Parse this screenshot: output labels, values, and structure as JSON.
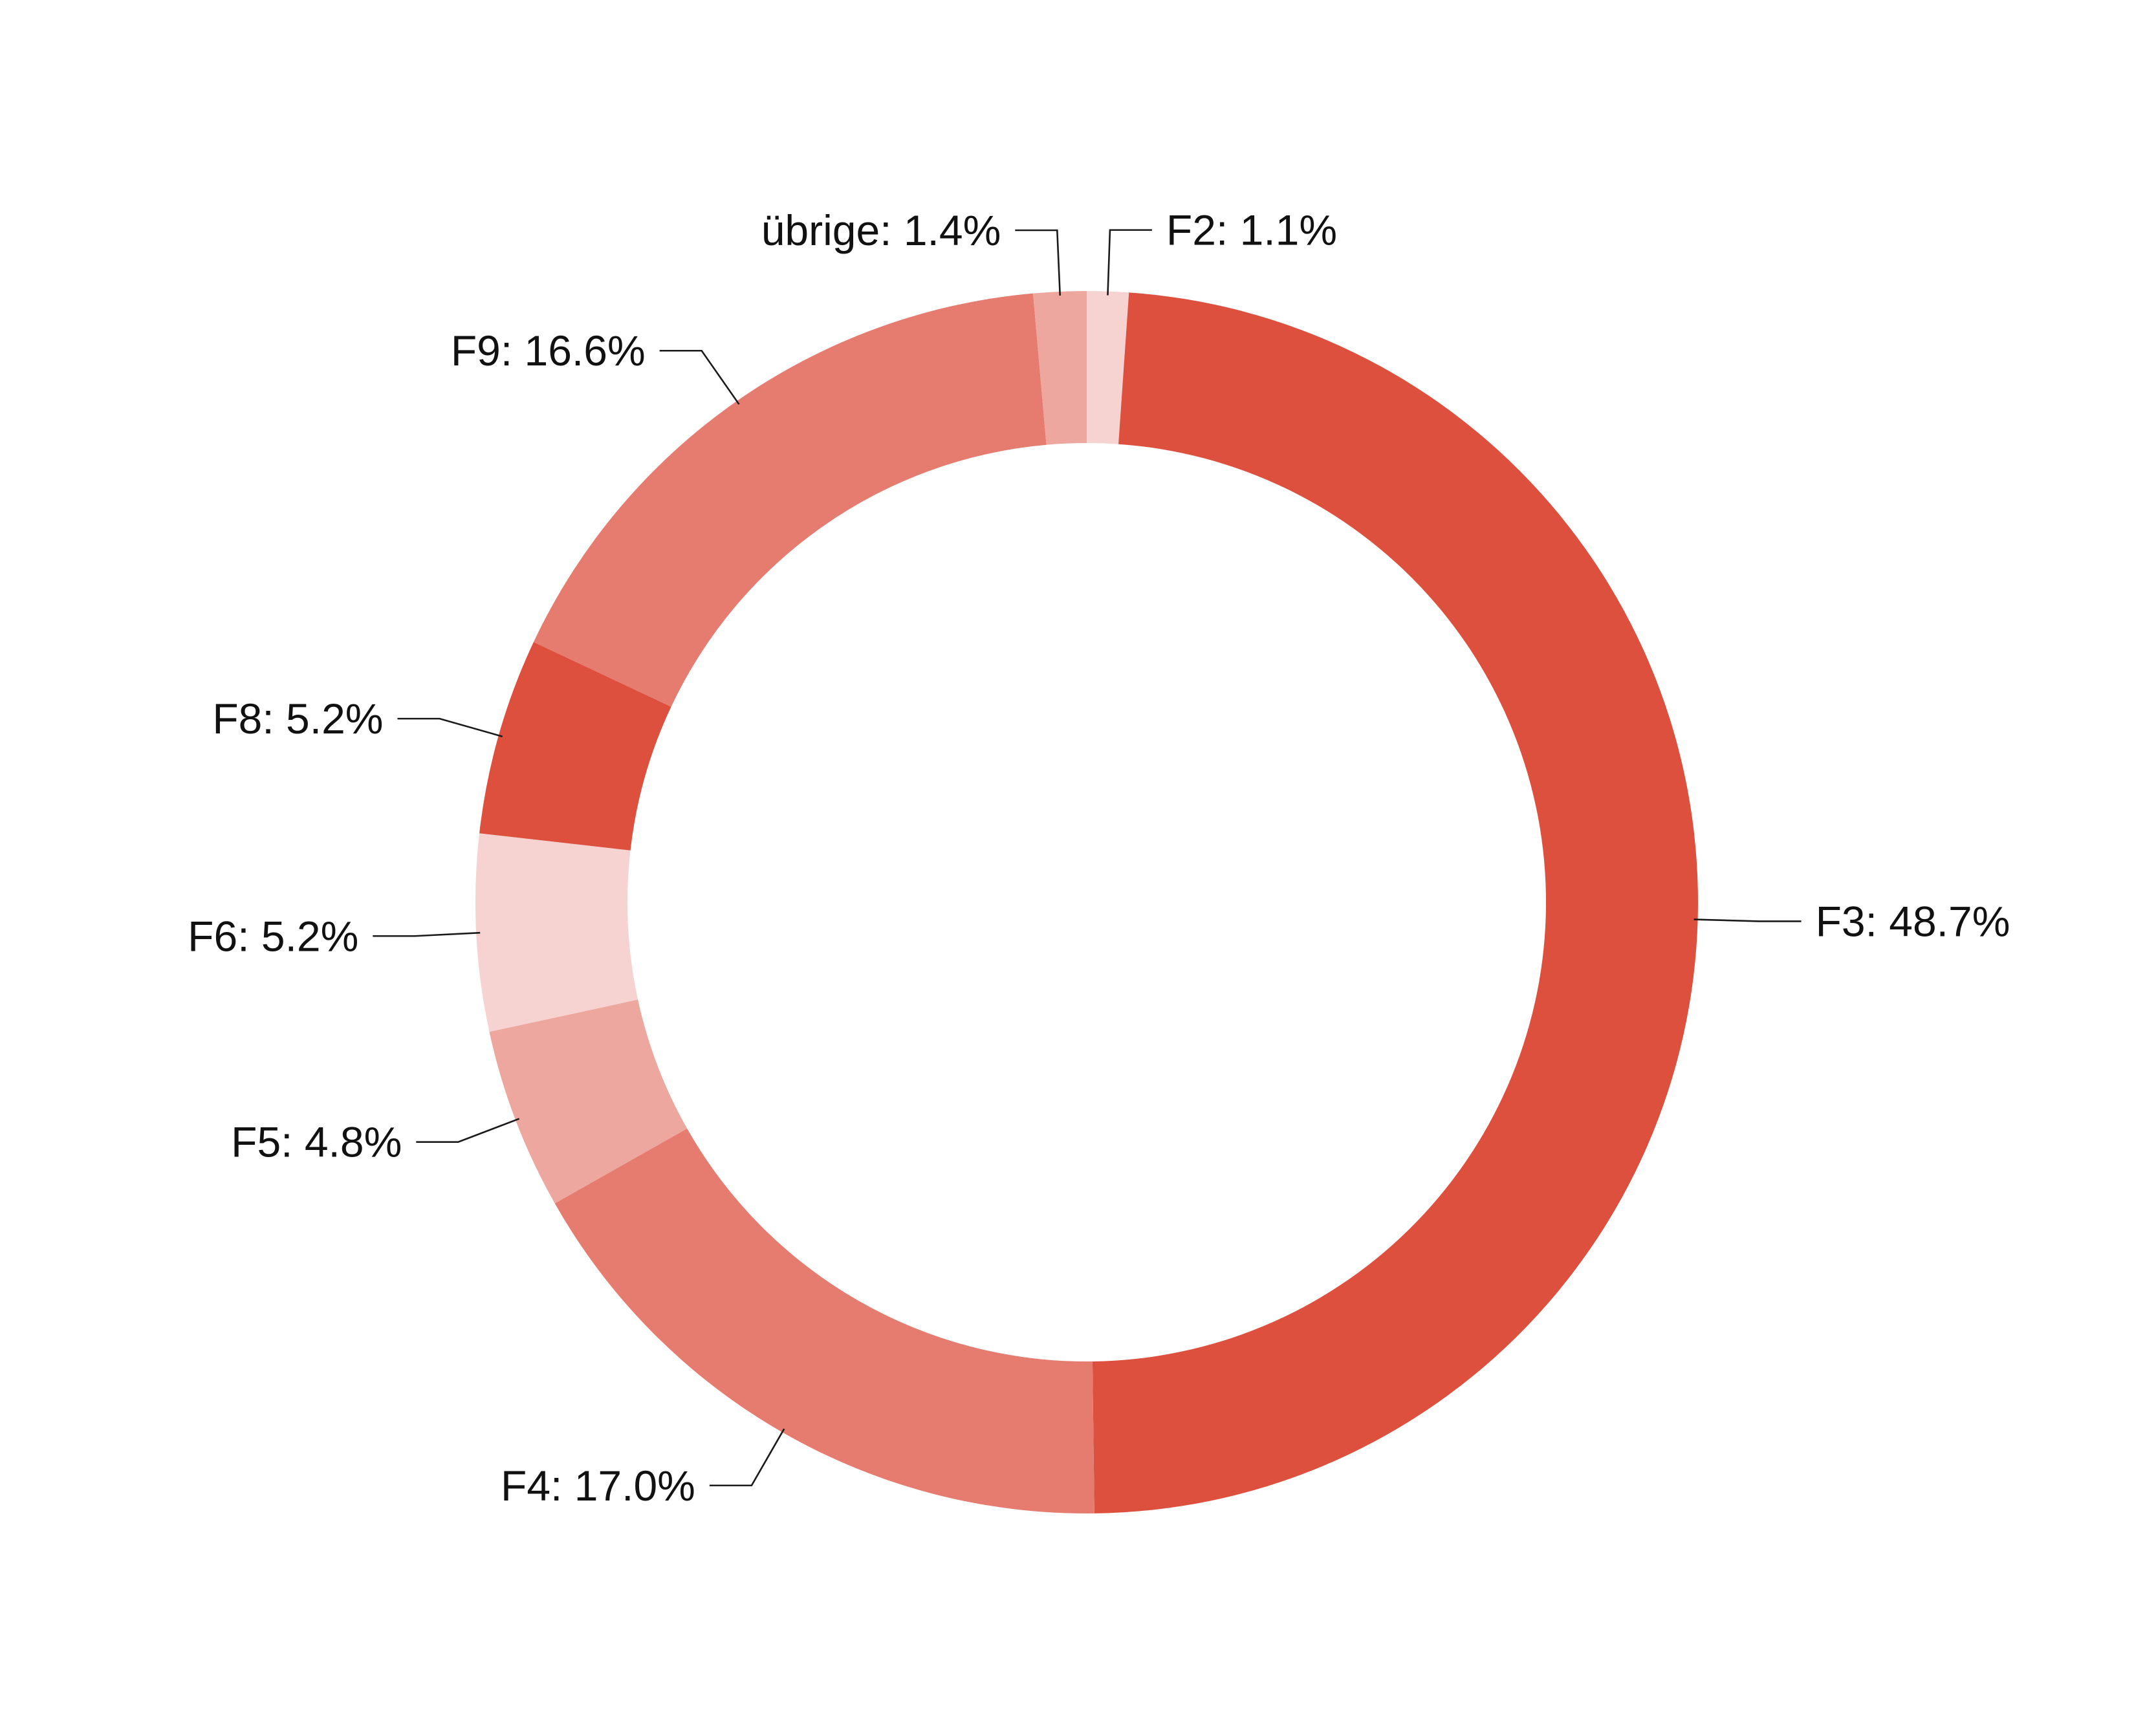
{
  "chart_data": {
    "type": "pie",
    "variant": "donut",
    "title": "",
    "unit": "%",
    "slices": [
      {
        "label": "F2",
        "value": 1.1,
        "text": "F2: 1.1%",
        "color": "#F6D3D0"
      },
      {
        "label": "F3",
        "value": 48.7,
        "text": "F3: 48.7%",
        "color": "#DE503E"
      },
      {
        "label": "F4",
        "value": 17.0,
        "text": "F4: 17.0%",
        "color": "#E67C6F"
      },
      {
        "label": "F5",
        "value": 4.8,
        "text": "F5: 4.8%",
        "color": "#EDA79E"
      },
      {
        "label": "F6",
        "value": 5.2,
        "text": "F6: 5.2%",
        "color": "#F6D3D0"
      },
      {
        "label": "F8",
        "value": 5.2,
        "text": "F8: 5.2%",
        "color": "#DE503E"
      },
      {
        "label": "F9",
        "value": 16.6,
        "text": "F9: 16.6%",
        "color": "#E67C6F"
      },
      {
        "label": "übrige",
        "value": 1.4,
        "text": "übrige: 1.4%",
        "color": "#EDA79E"
      }
    ],
    "start_angle": "top",
    "direction": "clockwise",
    "legend": "none",
    "labels": "outside with leader lines"
  }
}
